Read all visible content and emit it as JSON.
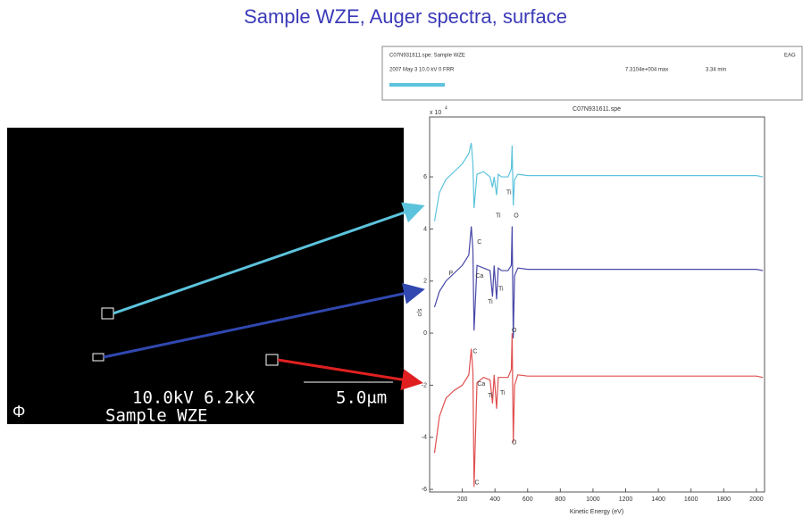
{
  "slide": {
    "title": "Sample WZE, Auger spectra, surface"
  },
  "header": {
    "file": "C07N931611.spe: Sample WZE",
    "lab": "EAG",
    "conditions": "2007 May 3  10.0 kV  0 FRR",
    "max": "7.3104e+004 max",
    "time": "3.34 min"
  },
  "image": {
    "beam": "10.0kV 6.2kX",
    "sample": "Sample WZE",
    "scale": "5.0μm",
    "logo": "Φ"
  },
  "chart_data": {
    "type": "line",
    "title": "C07N931611.spe",
    "x_label": "Kinetic Energy (eV)",
    "y_label": "c/s",
    "multiplier": "x 10",
    "multiplier_exp": "4",
    "x": [
      30,
      60,
      100,
      150,
      200,
      240,
      255,
      265,
      272,
      290,
      330,
      370,
      385,
      395,
      410,
      420,
      440,
      480,
      500,
      505,
      512,
      520,
      540,
      600,
      800,
      1000,
      1200,
      1400,
      1600,
      1800,
      2000,
      2040
    ],
    "series": [
      {
        "color": "#5cc3dc",
        "values": [
          4.3,
          5.4,
          5.9,
          6.2,
          6.5,
          6.9,
          7.3,
          6.5,
          4.8,
          6.1,
          6.2,
          6.0,
          5.6,
          6.0,
          5.3,
          6.1,
          6.0,
          6.0,
          6.3,
          7.2,
          4.9,
          5.9,
          6.1,
          6.05,
          6.05,
          6.05,
          6.05,
          6.05,
          6.05,
          6.05,
          6.05,
          6.0
        ]
      },
      {
        "color": "#4848a8",
        "values": [
          1.0,
          1.6,
          2.0,
          2.3,
          2.6,
          3.0,
          4.1,
          3.2,
          0.1,
          2.6,
          2.5,
          2.4,
          1.4,
          2.6,
          1.3,
          2.5,
          2.4,
          2.4,
          2.6,
          4.1,
          -0.2,
          2.2,
          2.5,
          2.45,
          2.45,
          2.45,
          2.45,
          2.45,
          2.45,
          2.45,
          2.45,
          2.4
        ]
      },
      {
        "color": "#e05050",
        "values": [
          -4.6,
          -3.2,
          -2.5,
          -2.2,
          -2.0,
          -1.6,
          -0.6,
          -1.5,
          -5.9,
          -1.9,
          -1.7,
          -1.8,
          -2.7,
          -1.6,
          -2.9,
          -1.7,
          -1.7,
          -1.7,
          -1.4,
          0.0,
          -4.2,
          -2.0,
          -1.6,
          -1.65,
          -1.65,
          -1.65,
          -1.65,
          -1.65,
          -1.65,
          -1.65,
          -1.65,
          -1.7
        ]
      }
    ],
    "annotations": [
      {
        "text": "Ti",
        "x": 420,
        "y": 4.5
      },
      {
        "text": "Ti",
        "x": 485,
        "y": 5.4
      },
      {
        "text": "O",
        "x": 530,
        "y": 4.5
      },
      {
        "text": "C",
        "x": 305,
        "y": 3.5
      },
      {
        "text": "P",
        "x": 130,
        "y": 2.3
      },
      {
        "text": "Ca",
        "x": 305,
        "y": 2.2
      },
      {
        "text": "Ti",
        "x": 436,
        "y": 1.7
      },
      {
        "text": "Ti",
        "x": 371,
        "y": 1.2
      },
      {
        "text": "O",
        "x": 518,
        "y": 0.1
      },
      {
        "text": "C",
        "x": 278,
        "y": -0.7
      },
      {
        "text": "Ca",
        "x": 316,
        "y": -1.95
      },
      {
        "text": "Ti",
        "x": 371,
        "y": -2.4
      },
      {
        "text": "Ti",
        "x": 447,
        "y": -2.3
      },
      {
        "text": "O",
        "x": 518,
        "y": -4.2
      },
      {
        "text": "C",
        "x": 290,
        "y": -5.75
      }
    ],
    "xlim": [
      0,
      2050
    ],
    "xticks": [
      200,
      400,
      600,
      800,
      1000,
      1200,
      1400,
      1600,
      1800,
      2000
    ],
    "ylim": [
      -6.1,
      8.3
    ],
    "yticks": [
      -6,
      -4,
      -2,
      0,
      2,
      4,
      6
    ]
  }
}
